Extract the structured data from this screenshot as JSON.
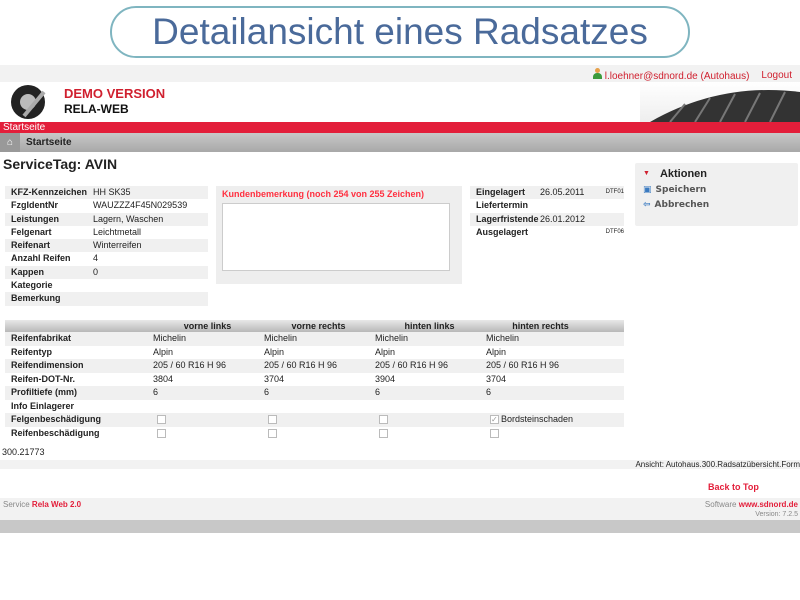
{
  "user": {
    "email": "l.loehner@sdnord.de (Autohaus)",
    "logout": "Logout"
  },
  "header": {
    "demo": "DEMO VERSION",
    "app": "RELA-WEB"
  },
  "nav": {
    "menu": "Startseite",
    "breadcrumb": "Startseite"
  },
  "title": "ServiceTag: AVIN",
  "info": [
    [
      "KFZ-Kennzeichen",
      "HH SK35"
    ],
    [
      "FzgIdentNr",
      "WAUZZZ4F45N029539"
    ],
    [
      "Leistungen",
      "Lagern, Waschen"
    ],
    [
      "Felgenart",
      "Leichtmetall"
    ],
    [
      "Reifenart",
      "Winterreifen"
    ],
    [
      "Anzahl Reifen",
      "4"
    ],
    [
      "Kappen",
      "0"
    ],
    [
      "Kategorie",
      ""
    ],
    [
      "Bemerkung",
      ""
    ]
  ],
  "remark": {
    "label": "Kundenbemerkung (noch 254 von 255 Zeichen)",
    "value": ""
  },
  "dates": [
    [
      "Eingelagert",
      "26.05.2011",
      "DTF01"
    ],
    [
      "Liefertermin",
      "",
      ""
    ],
    [
      "Lagerfristende",
      "26.01.2012",
      ""
    ],
    [
      "Ausgelagert",
      "",
      "DTF06"
    ]
  ],
  "actions": {
    "title": "Aktionen",
    "save": "Speichern",
    "cancel": "Abbrechen"
  },
  "tires": {
    "headers": [
      "",
      "vorne links",
      "vorne rechts",
      "hinten links",
      "hinten rechts"
    ],
    "rows": [
      [
        "Reifenfabrikat",
        "Michelin",
        "Michelin",
        "Michelin",
        "Michelin"
      ],
      [
        "Reifentyp",
        "Alpin",
        "Alpin",
        "Alpin",
        "Alpin"
      ],
      [
        "Reifendimension",
        "205 / 60 R16 H 96",
        "205 / 60 R16 H 96",
        "205 / 60 R16 H 96",
        "205 / 60 R16 H 96"
      ],
      [
        "Reifen-DOT-Nr.",
        "3804",
        "3704",
        "3904",
        "3704"
      ],
      [
        "Profiltiefe (mm)",
        "6",
        "6",
        "6",
        "6"
      ],
      [
        "Info Einlagerer",
        "",
        "",
        "",
        ""
      ]
    ],
    "felgen_label": "Felgenbeschädigung",
    "felgen_checked": [
      false,
      false,
      false,
      true
    ],
    "felgen_note": "Bordsteinschaden",
    "reifen_label": "Reifenbeschädigung",
    "reifen_checked": [
      false,
      false,
      false,
      false
    ]
  },
  "id_number": "300.21773",
  "view": "Ansicht: Autohaus.300.Radsatzübersicht.Form",
  "back_to_top": "Back to Top",
  "footer": {
    "service": "Service",
    "service_name": "Rela Web 2.0",
    "software": "Software",
    "site": "www.sdnord.de",
    "version": "Version: 7.2.5"
  },
  "watermark": "Detailansicht eines Radsatzes"
}
